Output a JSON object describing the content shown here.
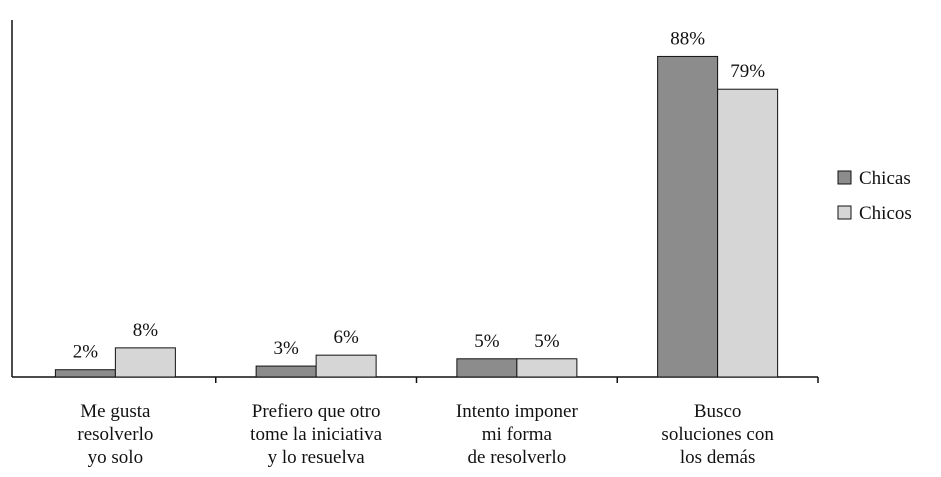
{
  "chart_data": {
    "type": "bar",
    "categories": [
      "Me gusta\nresolverlo\nyo solo",
      "Prefiero que otro\ntome la iniciativa\ny lo resuelva",
      "Intento imponer\nmi forma\nde resolverlo",
      "Busco\nsoluciones con\nlos demás"
    ],
    "series": [
      {
        "name": "Chicas",
        "color": "#8c8c8c",
        "values": [
          2,
          3,
          5,
          88
        ],
        "value_labels": [
          "2%",
          "3%",
          "5%",
          "88%"
        ]
      },
      {
        "name": "Chicos",
        "color": "#d6d6d6",
        "values": [
          8,
          6,
          5,
          79
        ],
        "value_labels": [
          "8%",
          "6%",
          "5%",
          "79%"
        ]
      }
    ],
    "ylim": [
      0,
      98
    ],
    "legend": "right"
  }
}
